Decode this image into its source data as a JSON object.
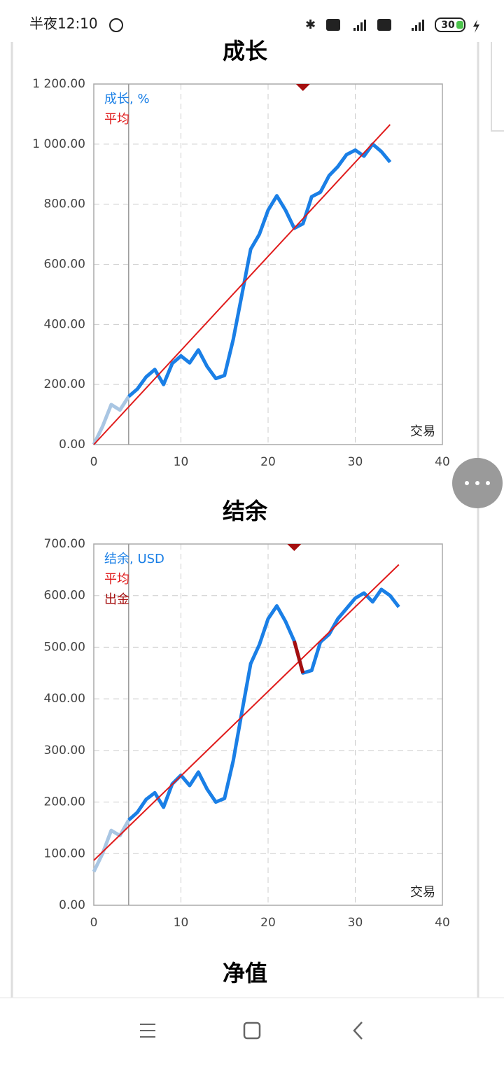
{
  "status_bar": {
    "time": "半夜12:10",
    "battery": "30"
  },
  "chart_data": [
    {
      "type": "line",
      "title": "成长",
      "xlabel": "交易",
      "xlim": [
        0,
        40
      ],
      "xticks": [
        0,
        10,
        20,
        30,
        40
      ],
      "ylim": [
        0,
        1200
      ],
      "yticks": [
        {
          "value": 0,
          "label": "0.00"
        },
        {
          "value": 200,
          "label": "200.00"
        },
        {
          "value": 400,
          "label": "400.00"
        },
        {
          "value": 600,
          "label": "600.00"
        },
        {
          "value": 800,
          "label": "800.00"
        },
        {
          "value": 1000,
          "label": "1 000.00"
        },
        {
          "value": 1200,
          "label": "1 200.00"
        }
      ],
      "grid": true,
      "legend": "upper left",
      "vline_x": 4,
      "triangle_x": 24,
      "triangle_color": "#a50f0f",
      "series": [
        {
          "name": "成长, %",
          "color": "#1a7fe6",
          "faded_color": "#a9c6e3",
          "x": [
            0,
            1,
            2,
            3,
            4,
            5,
            6,
            7,
            8,
            9,
            10,
            11,
            12,
            13,
            14,
            15,
            16,
            17,
            18,
            19,
            20,
            21,
            22,
            23,
            24,
            25,
            26,
            27,
            28,
            29,
            30,
            31,
            32,
            33,
            34
          ],
          "values": [
            0,
            60,
            133,
            115,
            160,
            185,
            225,
            250,
            200,
            270,
            295,
            272,
            315,
            260,
            220,
            230,
            350,
            500,
            650,
            700,
            780,
            828,
            780,
            720,
            735,
            825,
            840,
            895,
            925,
            965,
            980,
            960,
            1000,
            975,
            940
          ]
        },
        {
          "name": "平均",
          "color": "#e01b1b",
          "x": [
            0,
            34
          ],
          "values": [
            0,
            1065
          ]
        }
      ]
    },
    {
      "type": "line",
      "title": "结余",
      "xlabel": "交易",
      "xlim": [
        0,
        40
      ],
      "xticks": [
        0,
        10,
        20,
        30,
        40
      ],
      "ylim": [
        0,
        700
      ],
      "yticks": [
        {
          "value": 0,
          "label": "0.00"
        },
        {
          "value": 100,
          "label": "100.00"
        },
        {
          "value": 200,
          "label": "200.00"
        },
        {
          "value": 300,
          "label": "300.00"
        },
        {
          "value": 400,
          "label": "400.00"
        },
        {
          "value": 500,
          "label": "500.00"
        },
        {
          "value": 600,
          "label": "600.00"
        },
        {
          "value": 700,
          "label": "700.00"
        }
      ],
      "grid": true,
      "legend": "upper left",
      "vline_x": 4,
      "triangle_x": 23,
      "triangle_color": "#a50f0f",
      "series": [
        {
          "name": "结余, USD",
          "color": "#1a7fe6",
          "faded_color": "#a9c6e3",
          "x": [
            0,
            1,
            2,
            3,
            4,
            5,
            6,
            7,
            8,
            9,
            10,
            11,
            12,
            13,
            14,
            15,
            16,
            17,
            18,
            19,
            20,
            21,
            22,
            23,
            24,
            25,
            26,
            27,
            28,
            29,
            30,
            31,
            32,
            33,
            34,
            35
          ],
          "values": [
            65,
            100,
            145,
            135,
            165,
            180,
            205,
            218,
            190,
            235,
            252,
            232,
            258,
            225,
            200,
            207,
            280,
            375,
            468,
            505,
            555,
            580,
            550,
            512,
            450,
            455,
            510,
            525,
            555,
            575,
            595,
            605,
            588,
            612,
            600,
            578
          ]
        },
        {
          "name": "平均",
          "color": "#e01b1b",
          "x": [
            0,
            35
          ],
          "values": [
            87,
            660
          ]
        },
        {
          "name": "出金",
          "color": "#a50f0f",
          "x": [
            23,
            24
          ],
          "values": [
            512,
            450
          ]
        }
      ]
    }
  ],
  "next_title": "净值"
}
